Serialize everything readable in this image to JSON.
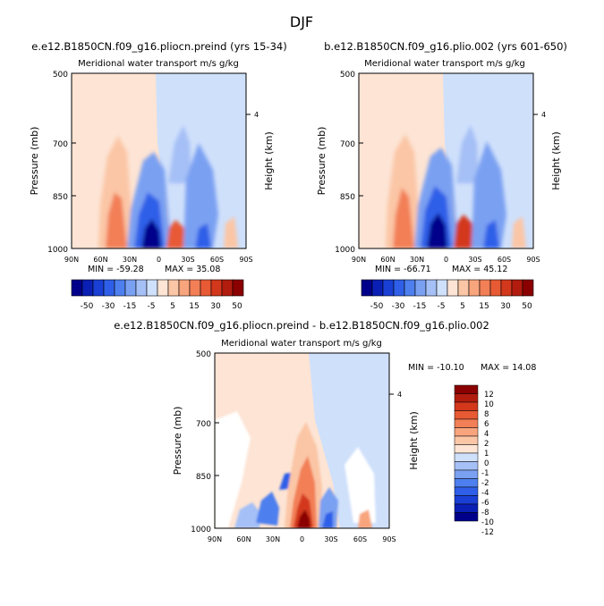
{
  "page": {
    "season_title": "DJF"
  },
  "colors": {
    "blue_levels": [
      "#00008b",
      "#0a1fb4",
      "#1a3fd4",
      "#2f5fe8",
      "#4d7fee",
      "#7aa0f2",
      "#a5c0f6",
      "#cfe0fb"
    ],
    "red_levels": [
      "#fde4d4",
      "#fbc6a6",
      "#f8a47c",
      "#f27f56",
      "#e75a34",
      "#d3381c",
      "#b21c0f",
      "#8b0000"
    ],
    "neutral": "#ffffff"
  },
  "chart_data": [
    {
      "id": "panel1",
      "type": "heatmap",
      "title": "e.e12.B1850CN.f09_g16.pliocn.preind (yrs 15-34)",
      "subtitle": "Meridional water transport m/s g/kg",
      "xlabel": "",
      "ylabel": "Pressure (mb)",
      "right_label": "Height (km)",
      "right_ticks": [
        "4"
      ],
      "x_ticks": [
        "90N",
        "60N",
        "30N",
        "0",
        "30S",
        "60S",
        "90S"
      ],
      "y_ticks": [
        "500",
        "700",
        "850",
        "1000"
      ],
      "xlim": [
        90,
        -90
      ],
      "ylim": [
        1000,
        500
      ],
      "min_label": "MIN = -59.28",
      "max_label": "MAX =  35.08",
      "colorbar_labels": [
        "-50",
        "-30",
        "-15",
        "-5",
        "5",
        "15",
        "30",
        "50"
      ]
    },
    {
      "id": "panel2",
      "type": "heatmap",
      "title": "b.e12.B1850CN.f09_g16.plio.002 (yrs 601-650)",
      "subtitle": "Meridional water transport m/s g/kg",
      "xlabel": "",
      "ylabel": "Pressure (mb)",
      "right_label": "Height (km)",
      "right_ticks": [
        "4"
      ],
      "x_ticks": [
        "90N",
        "60N",
        "30N",
        "0",
        "30S",
        "60S",
        "90S"
      ],
      "y_ticks": [
        "500",
        "700",
        "850",
        "1000"
      ],
      "xlim": [
        90,
        -90
      ],
      "ylim": [
        1000,
        500
      ],
      "min_label": "MIN = -66.71",
      "max_label": "MAX =  45.12",
      "colorbar_labels": [
        "-50",
        "-30",
        "-15",
        "-5",
        "5",
        "15",
        "30",
        "50"
      ]
    },
    {
      "id": "panel3",
      "type": "heatmap",
      "title": "e.e12.B1850CN.f09_g16.pliocn.preind - b.e12.B1850CN.f09_g16.plio.002",
      "subtitle": "Meridional water transport m/s g/kg",
      "xlabel": "",
      "ylabel": "Pressure (mb)",
      "right_label": "Height (km)",
      "right_ticks": [
        "4"
      ],
      "x_ticks": [
        "90N",
        "60N",
        "30N",
        "0",
        "30S",
        "60S",
        "90S"
      ],
      "y_ticks": [
        "500",
        "700",
        "850",
        "1000"
      ],
      "xlim": [
        90,
        -90
      ],
      "ylim": [
        1000,
        500
      ],
      "min_label": "MIN = -10.10",
      "max_label": "MAX =  14.08",
      "colorbar_labels": [
        "12",
        "10",
        "8",
        "6",
        "4",
        "2",
        "1",
        "0",
        "-1",
        "-2",
        "-4",
        "-6",
        "-8",
        "-10",
        "-12"
      ]
    }
  ]
}
